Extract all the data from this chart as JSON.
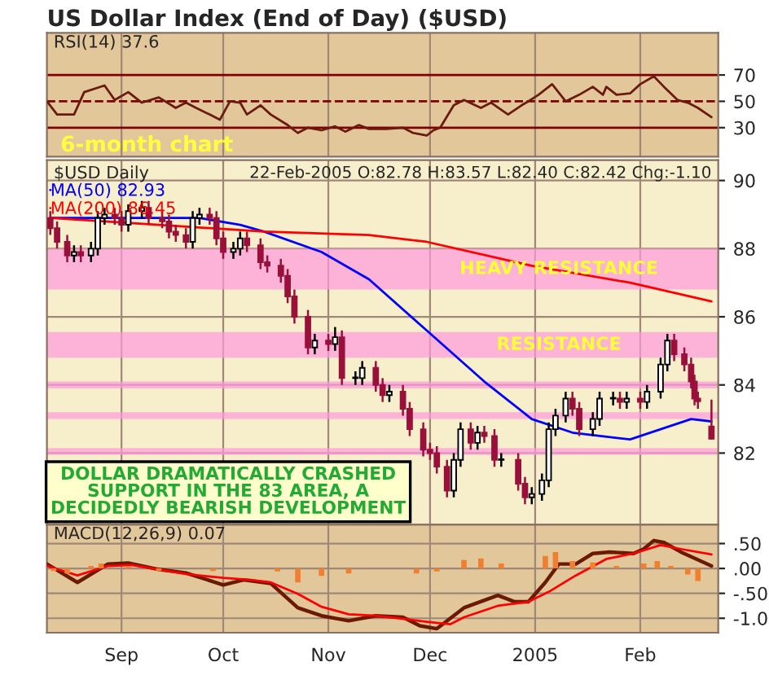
{
  "chart_data": [
    {
      "type": "line",
      "title": "US Dollar Index (End of Day) ($USD)",
      "xlim": [
        "2004-08-10",
        "2005-02-24"
      ],
      "xticks": [
        {
          "value": "2004-09-01",
          "label": null
        },
        {
          "value": "2004-10-01",
          "label": null
        },
        {
          "value": "2004-11-01",
          "label": null
        },
        {
          "value": "2004-12-01",
          "label": null
        },
        {
          "value": "2005-01-01",
          "label": null
        },
        {
          "value": "2005-02-01",
          "label": null
        }
      ],
      "ylim": [
        8,
        102
      ],
      "yticks": [
        30,
        50,
        70
      ],
      "tick_labels": "y",
      "grid": "x",
      "series": [
        {
          "color": "#6b1a10",
          "x": [
            "2004-08-10",
            "2004-08-13",
            "2004-08-18",
            "2004-08-21",
            "2004-08-27",
            "2004-08-30",
            "2004-09-03",
            "2004-09-07",
            "2004-09-12",
            "2004-09-17",
            "2004-09-20",
            "2004-09-23",
            "2004-09-27",
            "2004-09-30",
            "2004-10-03",
            "2004-10-06",
            "2004-10-08",
            "2004-10-12",
            "2004-10-15",
            "2004-10-20",
            "2004-10-23",
            "2004-10-26",
            "2004-10-30",
            "2004-11-03",
            "2004-11-06",
            "2004-11-10",
            "2004-11-13",
            "2004-11-18",
            "2004-11-23",
            "2004-11-26",
            "2004-11-30",
            "2004-12-02",
            "2004-12-04",
            "2004-12-08",
            "2004-12-11",
            "2004-12-16",
            "2004-12-19",
            "2004-12-24",
            "2004-12-28",
            "2004-12-30",
            "2005-01-02",
            "2005-01-06",
            "2005-01-10",
            "2005-01-14",
            "2005-01-18",
            "2005-01-21",
            "2005-01-22",
            "2005-01-25",
            "2005-01-29",
            "2005-02-01",
            "2005-02-05",
            "2005-02-08",
            "2005-02-12",
            "2005-02-15",
            "2005-02-18",
            "2005-02-22"
          ],
          "values": [
            50,
            40,
            40,
            57,
            62,
            51,
            57,
            49,
            53,
            45,
            49,
            45,
            40,
            36,
            50,
            49,
            40,
            47,
            40,
            32,
            26,
            30,
            28,
            31,
            27,
            32,
            29,
            29,
            30,
            26,
            24,
            28,
            30,
            47,
            51,
            45,
            49,
            40,
            47,
            50,
            55,
            63,
            50,
            55,
            61,
            55,
            61,
            55,
            56,
            63,
            69,
            61,
            51,
            49,
            45,
            38
          ]
        }
      ],
      "ref_lines": [
        {
          "axis": "y",
          "value": 70,
          "color": "#800000",
          "line_style": "solid"
        },
        {
          "axis": "y",
          "value": 50,
          "color": "#800000",
          "line_style": "dashed"
        },
        {
          "axis": "y",
          "value": 30,
          "color": "#800000",
          "line_style": "solid"
        }
      ],
      "annotations": [
        "RSI(14) 37.6",
        "6-month chart"
      ]
    },
    {
      "type": "candlestick",
      "xlim": [
        "2004-08-10",
        "2005-02-24"
      ],
      "xticks": [
        {
          "value": "2004-09-01",
          "label": null
        },
        {
          "value": "2004-10-01",
          "label": null
        },
        {
          "value": "2004-11-01",
          "label": null
        },
        {
          "value": "2004-12-01",
          "label": null
        },
        {
          "value": "2005-01-01",
          "label": null
        },
        {
          "value": "2005-02-01",
          "label": null
        }
      ],
      "ylim": [
        79.9,
        90.6
      ],
      "yticks": [
        82,
        84,
        86,
        88,
        90
      ],
      "tick_labels": "y",
      "grid": true,
      "legend": "top left",
      "x": [
        "2004-08-11",
        "2004-08-13",
        "2004-08-16",
        "2004-08-18",
        "2004-08-20",
        "2004-08-23",
        "2004-08-25",
        "2004-08-27",
        "2004-08-30",
        "2004-09-01",
        "2004-09-03",
        "2004-09-07",
        "2004-09-09",
        "2004-09-13",
        "2004-09-15",
        "2004-09-17",
        "2004-09-20",
        "2004-09-22",
        "2004-09-24",
        "2004-09-27",
        "2004-09-29",
        "2004-10-01",
        "2004-10-04",
        "2004-10-06",
        "2004-10-08",
        "2004-10-12",
        "2004-10-14",
        "2004-10-18",
        "2004-10-20",
        "2004-10-22",
        "2004-10-26",
        "2004-10-28",
        "2004-11-01",
        "2004-11-03",
        "2004-11-05",
        "2004-11-09",
        "2004-11-11",
        "2004-11-15",
        "2004-11-17",
        "2004-11-19",
        "2004-11-23",
        "2004-11-25",
        "2004-11-29",
        "2004-12-01",
        "2004-12-03",
        "2004-12-06",
        "2004-12-08",
        "2004-12-10",
        "2004-12-13",
        "2004-12-15",
        "2004-12-17",
        "2004-12-20",
        "2004-12-22",
        "2004-12-27",
        "2004-12-29",
        "2004-12-31",
        "2005-01-03",
        "2005-01-05",
        "2005-01-07",
        "2005-01-10",
        "2005-01-12",
        "2005-01-14",
        "2005-01-18",
        "2005-01-20",
        "2005-01-24",
        "2005-01-26",
        "2005-01-28",
        "2005-02-01",
        "2005-02-03",
        "2005-02-07",
        "2005-02-09",
        "2005-02-11",
        "2005-02-14",
        "2005-02-16",
        "2005-02-17",
        "2005-02-18",
        "2005-02-22"
      ],
      "ohlc": [
        [
          88.9,
          89.1,
          88.4,
          88.6
        ],
        [
          88.6,
          88.8,
          88.0,
          88.2
        ],
        [
          88.2,
          88.4,
          87.6,
          87.8
        ],
        [
          87.8,
          88.1,
          87.6,
          87.9
        ],
        [
          87.9,
          88.1,
          87.6,
          87.8
        ],
        [
          87.8,
          88.2,
          87.6,
          88.0
        ],
        [
          88.0,
          89.1,
          87.8,
          88.9
        ],
        [
          88.9,
          89.2,
          88.7,
          89.0
        ],
        [
          89.0,
          89.2,
          88.7,
          88.9
        ],
        [
          88.9,
          89.1,
          88.5,
          88.7
        ],
        [
          88.7,
          89.3,
          88.5,
          89.1
        ],
        [
          89.1,
          89.4,
          88.9,
          89.2
        ],
        [
          89.2,
          89.4,
          88.7,
          88.9
        ],
        [
          88.9,
          89.1,
          88.6,
          88.8
        ],
        [
          88.8,
          89.0,
          88.3,
          88.5
        ],
        [
          88.5,
          88.7,
          88.2,
          88.4
        ],
        [
          88.4,
          88.6,
          88.0,
          88.2
        ],
        [
          88.2,
          89.1,
          88.0,
          88.9
        ],
        [
          88.9,
          89.2,
          88.7,
          89.0
        ],
        [
          89.0,
          89.2,
          88.7,
          88.9
        ],
        [
          88.9,
          89.1,
          88.1,
          88.3
        ],
        [
          88.3,
          88.5,
          87.7,
          87.9
        ],
        [
          87.9,
          88.2,
          87.7,
          88.0
        ],
        [
          88.0,
          88.5,
          87.8,
          88.3
        ],
        [
          88.3,
          88.5,
          87.9,
          88.1
        ],
        [
          88.1,
          88.3,
          87.4,
          87.6
        ],
        [
          87.6,
          87.8,
          87.3,
          87.5
        ],
        [
          87.5,
          87.7,
          87.0,
          87.2
        ],
        [
          87.2,
          87.4,
          86.4,
          86.6
        ],
        [
          86.6,
          86.8,
          85.8,
          86.0
        ],
        [
          86.0,
          86.2,
          84.9,
          85.1
        ],
        [
          85.1,
          85.5,
          84.9,
          85.3
        ],
        [
          85.3,
          85.5,
          85.0,
          85.2
        ],
        [
          85.2,
          85.7,
          85.0,
          85.4
        ],
        [
          85.4,
          85.6,
          84.0,
          84.2
        ],
        [
          84.2,
          84.4,
          84.0,
          84.2
        ],
        [
          84.2,
          84.7,
          84.0,
          84.5
        ],
        [
          84.5,
          84.7,
          83.8,
          84.0
        ],
        [
          84.0,
          84.2,
          83.5,
          83.7
        ],
        [
          83.7,
          84.0,
          83.5,
          83.8
        ],
        [
          83.8,
          84.0,
          83.1,
          83.3
        ],
        [
          83.3,
          83.5,
          82.5,
          82.7
        ],
        [
          82.7,
          82.9,
          81.9,
          82.1
        ],
        [
          82.1,
          82.3,
          81.8,
          82.0
        ],
        [
          82.0,
          82.2,
          81.4,
          81.6
        ],
        [
          81.6,
          81.8,
          80.7,
          80.9
        ],
        [
          80.9,
          82.0,
          80.7,
          81.8
        ],
        [
          81.8,
          82.9,
          81.6,
          82.7
        ],
        [
          82.7,
          82.9,
          82.1,
          82.3
        ],
        [
          82.3,
          82.8,
          82.1,
          82.6
        ],
        [
          82.6,
          82.8,
          82.3,
          82.5
        ],
        [
          82.5,
          82.7,
          81.6,
          81.8
        ],
        [
          81.8,
          82.0,
          81.6,
          81.8
        ],
        [
          81.8,
          82.0,
          80.9,
          81.1
        ],
        [
          81.1,
          81.3,
          80.5,
          80.7
        ],
        [
          80.7,
          81.0,
          80.5,
          80.8
        ],
        [
          80.8,
          81.4,
          80.6,
          81.2
        ],
        [
          81.2,
          82.9,
          81.0,
          82.7
        ],
        [
          82.7,
          83.3,
          82.5,
          83.1
        ],
        [
          83.1,
          83.8,
          82.9,
          83.6
        ],
        [
          83.6,
          83.8,
          83.1,
          83.3
        ],
        [
          83.3,
          83.5,
          82.5,
          82.7
        ],
        [
          82.7,
          83.2,
          82.5,
          83.0
        ],
        [
          83.0,
          83.8,
          82.8,
          83.6
        ],
        [
          83.6,
          83.8,
          83.4,
          83.6
        ],
        [
          83.6,
          83.8,
          83.3,
          83.5
        ],
        [
          83.5,
          83.8,
          83.3,
          83.6
        ],
        [
          83.6,
          83.8,
          83.3,
          83.5
        ],
        [
          83.5,
          84.0,
          83.3,
          83.8
        ],
        [
          83.8,
          84.8,
          83.6,
          84.6
        ],
        [
          84.6,
          85.5,
          84.4,
          85.3
        ],
        [
          85.3,
          85.5,
          84.7,
          84.9
        ],
        [
          84.9,
          85.1,
          84.4,
          84.6
        ],
        [
          84.6,
          84.8,
          83.9,
          84.1
        ],
        [
          84.1,
          84.3,
          83.4,
          83.6
        ],
        [
          83.6,
          83.8,
          83.3,
          83.52
        ],
        [
          82.78,
          83.57,
          82.4,
          82.42
        ]
      ],
      "series": [
        {
          "name": "MA(50) 82.93",
          "type": "line",
          "color": "#0000ff",
          "x": [
            "2004-08-11",
            "2004-09-24",
            "2004-10-06",
            "2004-10-13",
            "2004-10-30",
            "2004-11-13",
            "2004-11-30",
            "2004-12-17",
            "2004-12-31",
            "2005-01-12",
            "2005-01-29",
            "2005-02-07",
            "2005-02-16",
            "2005-02-22"
          ],
          "values": [
            88.9,
            88.9,
            88.7,
            88.5,
            87.9,
            87.1,
            85.6,
            84.1,
            83.0,
            82.6,
            82.4,
            82.7,
            83.0,
            82.93
          ]
        },
        {
          "name": "MA(200) 86.45",
          "type": "line",
          "color": "#ff0000",
          "x": [
            "2004-08-11",
            "2004-09-12",
            "2004-10-13",
            "2004-11-13",
            "2004-11-30",
            "2004-12-31",
            "2005-01-29",
            "2005-02-22"
          ],
          "values": [
            88.9,
            88.7,
            88.5,
            88.4,
            88.2,
            87.5,
            87.0,
            86.45
          ]
        }
      ],
      "bands": [
        {
          "axis": "y",
          "from": 86.8,
          "to": 88.0,
          "label": "HEAVY RESISTANCE",
          "color": "#ff99dd"
        },
        {
          "axis": "y",
          "from": 84.8,
          "to": 85.55,
          "label": "RESISTANCE",
          "color": "#ff99dd"
        },
        {
          "axis": "y",
          "from": 83.9,
          "to": 84.1,
          "color": "#ff99dd"
        },
        {
          "axis": "y",
          "from": 83.0,
          "to": 83.2,
          "color": "#ff99dd"
        },
        {
          "axis": "y",
          "from": 81.95,
          "to": 82.15,
          "color": "#ff99dd"
        }
      ],
      "annotations": [
        "$USD Daily",
        "22-Feb-2005 O:82.78 H:83.57 L:82.40 C:82.42 Chg:-1.10",
        "DOLLAR DRAMATICALLY CRASHED\nSUPPORT IN THE 83 AREA, A\nDECIDEDLY BEARISH DEVELOPMENT"
      ]
    },
    {
      "type": "line",
      "xlim": [
        "2004-08-10",
        "2005-02-24"
      ],
      "xticks": [
        {
          "value": "2004-09-01",
          "label": "Sep"
        },
        {
          "value": "2004-10-01",
          "label": "Oct"
        },
        {
          "value": "2004-11-01",
          "label": "Nov"
        },
        {
          "value": "2004-12-01",
          "label": "Dec"
        },
        {
          "value": "2005-01-01",
          "label": "2005"
        },
        {
          "value": "2005-02-01",
          "label": "Feb"
        }
      ],
      "ylim": [
        -1.29,
        0.88
      ],
      "yticks": [
        {
          "value": 0.5,
          "label": ".50"
        },
        {
          "value": 0,
          "label": ".00"
        },
        {
          "value": -0.5,
          "label": "-.50"
        },
        {
          "value": -1.0,
          "label": "-1.0"
        }
      ],
      "grid": true,
      "series": [
        {
          "type": "bar",
          "color": "#f08030",
          "x": [
            "2004-08-12",
            "2004-08-16",
            "2004-08-23",
            "2004-08-26",
            "2004-09-03",
            "2004-09-12",
            "2004-09-28",
            "2004-10-04",
            "2004-10-17",
            "2004-10-23",
            "2004-10-30",
            "2004-11-07",
            "2004-11-15",
            "2004-11-27",
            "2004-12-03",
            "2004-12-11",
            "2004-12-16",
            "2004-12-22",
            "2004-12-29",
            "2005-01-04",
            "2005-01-07",
            "2005-01-12",
            "2005-01-18",
            "2005-01-25",
            "2005-02-02",
            "2005-02-06",
            "2005-02-10",
            "2005-02-15",
            "2005-02-18"
          ],
          "values": [
            -0.05,
            -0.1,
            0.05,
            0.1,
            0.05,
            -0.05,
            -0.05,
            0.0,
            -0.06,
            -0.28,
            -0.15,
            -0.1,
            0.0,
            -0.1,
            -0.06,
            0.17,
            0.2,
            0.1,
            0.0,
            0.25,
            0.33,
            0.15,
            0.12,
            0.05,
            0.1,
            0.15,
            0.05,
            -0.12,
            -0.25
          ]
        },
        {
          "type": "line",
          "color": "#6b1a00",
          "x": [
            "2004-08-10",
            "2004-08-19",
            "2004-08-28",
            "2004-09-03",
            "2004-09-12",
            "2004-09-20",
            "2004-10-01",
            "2004-10-07",
            "2004-10-15",
            "2004-10-23",
            "2004-10-30",
            "2004-11-07",
            "2004-11-15",
            "2004-11-23",
            "2004-11-28",
            "2004-12-03",
            "2004-12-11",
            "2004-12-21",
            "2004-12-26",
            "2004-12-30",
            "2005-01-04",
            "2005-01-08",
            "2005-01-13",
            "2005-01-18",
            "2005-01-23",
            "2005-01-30",
            "2005-02-02",
            "2005-02-05",
            "2005-02-08",
            "2005-02-13",
            "2005-02-22"
          ],
          "values": [
            0.09,
            -0.28,
            0.09,
            0.11,
            -0.02,
            -0.09,
            -0.33,
            -0.23,
            -0.3,
            -0.79,
            -0.95,
            -1.05,
            -0.95,
            -0.98,
            -1.15,
            -1.21,
            -0.79,
            -0.54,
            -0.67,
            -0.67,
            -0.28,
            0.09,
            0.09,
            0.3,
            0.33,
            0.3,
            0.39,
            0.56,
            0.52,
            0.33,
            0.05
          ]
        },
        {
          "type": "line",
          "color": "#ff0000",
          "x": [
            "2004-08-10",
            "2004-08-19",
            "2004-08-28",
            "2004-09-04",
            "2004-09-12",
            "2004-09-20",
            "2004-10-01",
            "2004-10-09",
            "2004-10-15",
            "2004-10-23",
            "2004-10-30",
            "2004-11-07",
            "2004-11-15",
            "2004-11-23",
            "2004-11-30",
            "2004-12-07",
            "2004-12-11",
            "2004-12-21",
            "2004-12-30",
            "2005-01-05",
            "2005-01-13",
            "2005-01-22",
            "2005-01-30",
            "2005-02-07",
            "2005-02-13",
            "2005-02-22"
          ],
          "values": [
            0.05,
            -0.14,
            0.05,
            0.07,
            -0.02,
            -0.11,
            -0.19,
            -0.23,
            -0.28,
            -0.51,
            -0.77,
            -0.92,
            -0.95,
            -1.01,
            -1.07,
            -1.12,
            -0.98,
            -0.75,
            -0.67,
            -0.47,
            -0.14,
            0.19,
            0.3,
            0.47,
            0.39,
            0.28
          ]
        }
      ],
      "annotations": [
        "MACD(12,26,9) 0.07"
      ]
    }
  ]
}
